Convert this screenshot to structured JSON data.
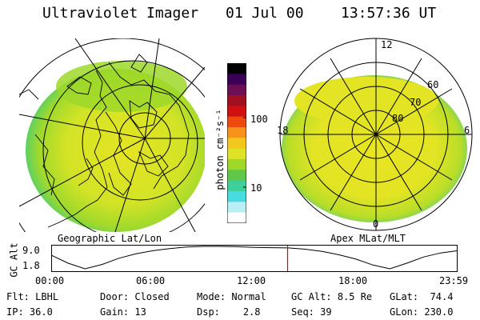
{
  "header": {
    "instrument": "Ultraviolet Imager",
    "date": "01 Jul 00",
    "time": "13:57:36 UT"
  },
  "colorbar": {
    "unit": "photon cm⁻²s⁻¹",
    "ticks": [
      "100",
      "10"
    ],
    "colors": [
      "#000000",
      "#3b0055",
      "#6e0e52",
      "#a01020",
      "#d01010",
      "#ee4a10",
      "#f7921a",
      "#f2c81e",
      "#dde325",
      "#9ed82a",
      "#5fc84a",
      "#3fcf9a",
      "#48dce0",
      "#b8eef4",
      "#ffffff"
    ]
  },
  "geo_map": {
    "caption": "Geographic Lat/Lon"
  },
  "apex_map": {
    "caption": "Apex MLat/MLT",
    "mlt_labels": {
      "top": "12",
      "bottom": "0",
      "left": "18",
      "right": "6"
    },
    "lat_labels": [
      "60",
      "70",
      "80"
    ]
  },
  "altitude_plot": {
    "ylabel": "GC Alt",
    "yticks": [
      "9.0",
      "1.8"
    ],
    "xticks": [
      "00:00",
      "06:00",
      "12:00",
      "18:00",
      "23:59"
    ],
    "marker_hour": 13.96,
    "alt_curve": [
      [
        0,
        6.2
      ],
      [
        1,
        3.6
      ],
      [
        2,
        1.8
      ],
      [
        3,
        3.2
      ],
      [
        4,
        5.2
      ],
      [
        5,
        6.6
      ],
      [
        6,
        7.6
      ],
      [
        7,
        8.3
      ],
      [
        8,
        8.8
      ],
      [
        9,
        9.0
      ],
      [
        10,
        9.0
      ],
      [
        11,
        8.9
      ],
      [
        12,
        8.7
      ],
      [
        13,
        8.6
      ],
      [
        14,
        8.5
      ],
      [
        15,
        8.1
      ],
      [
        16,
        7.4
      ],
      [
        17,
        6.3
      ],
      [
        18,
        4.9
      ],
      [
        19,
        3.0
      ],
      [
        20,
        1.8
      ],
      [
        21,
        3.6
      ],
      [
        22,
        5.6
      ],
      [
        23,
        6.9
      ],
      [
        24,
        7.6
      ]
    ]
  },
  "status": {
    "filter": {
      "label": "Flt:",
      "value": "LBHL"
    },
    "ip": {
      "label": "IP:",
      "value": "36.0"
    },
    "door": {
      "label": "Door:",
      "value": "Closed"
    },
    "gain": {
      "label": "Gain:",
      "value": "13"
    },
    "mode": {
      "label": "Mode:",
      "value": "Normal"
    },
    "dsp": {
      "label": "Dsp:",
      "value": "2.8"
    },
    "gc_alt": {
      "label": "GC Alt:",
      "value": "8.5 Re"
    },
    "seq": {
      "label": "Seq:",
      "value": "39"
    },
    "glat": {
      "label": "GLat:",
      "value": "74.4"
    },
    "glon": {
      "label": "GLon:",
      "value": "230.0"
    }
  }
}
